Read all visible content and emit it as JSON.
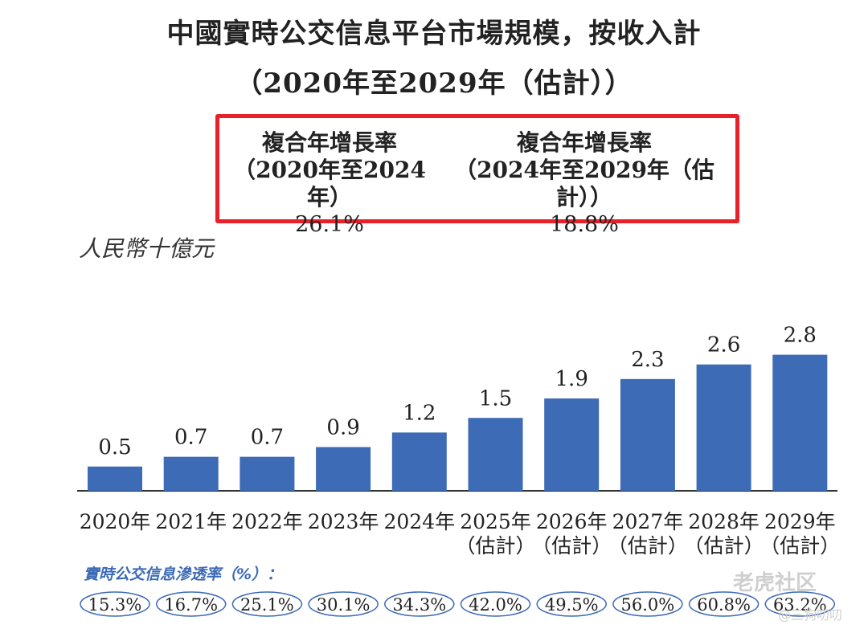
{
  "title_line1": "中國實時公交信息平台市場規模，按收入計",
  "title_line2": "（2020年至2029年（估計））",
  "cagr": [
    {
      "label_line1": "複合年增長率",
      "label_line2": "（2020年至2024年）",
      "value": "26.1%"
    },
    {
      "label_line1": "複合年增長率",
      "label_line2": "（2024年至2029年（估計））",
      "value": "18.8%"
    }
  ],
  "unit_label": "人民幣十億元",
  "penetration_title": "實時公交信息滲透率（%）：",
  "watermark": "老虎社区",
  "watermark_user": "@三狗叨叨",
  "colors": {
    "bar": "#3d6bb5",
    "highlight_border": "#e8202a",
    "penetration_text": "#3c6ab5"
  },
  "chart_data": {
    "type": "bar",
    "title": "中國實時公交信息平台市場規模，按收入計",
    "ylabel": "人民幣十億元",
    "ylim": [
      0,
      3.2
    ],
    "grid": false,
    "categories": [
      {
        "line1": "2020年",
        "line2": ""
      },
      {
        "line1": "2021年",
        "line2": ""
      },
      {
        "line1": "2022年",
        "line2": ""
      },
      {
        "line1": "2023年",
        "line2": ""
      },
      {
        "line1": "2024年",
        "line2": ""
      },
      {
        "line1": "2025年",
        "line2": "（估計）"
      },
      {
        "line1": "2026年",
        "line2": "（估計）"
      },
      {
        "line1": "2027年",
        "line2": "（估計）"
      },
      {
        "line1": "2028年",
        "line2": "（估計）"
      },
      {
        "line1": "2029年",
        "line2": "（估計）"
      }
    ],
    "values": [
      0.5,
      0.7,
      0.7,
      0.9,
      1.2,
      1.5,
      1.9,
      2.3,
      2.6,
      2.8
    ],
    "value_labels": [
      "0.5",
      "0.7",
      "0.7",
      "0.9",
      "1.2",
      "1.5",
      "1.9",
      "2.3",
      "2.6",
      "2.8"
    ],
    "penetration_rates": [
      "15.3%",
      "16.7%",
      "25.1%",
      "30.1%",
      "34.3%",
      "42.0%",
      "49.5%",
      "56.0%",
      "60.8%",
      "63.2%"
    ]
  }
}
